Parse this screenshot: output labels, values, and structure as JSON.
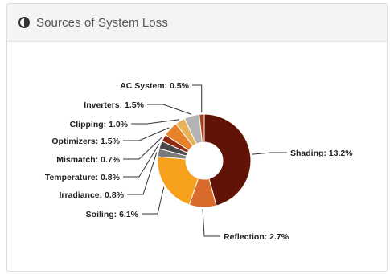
{
  "panel": {
    "title": "Sources of System Loss",
    "icon": "half-circle-contrast-icon"
  },
  "chart_data": {
    "type": "pie",
    "donut": true,
    "title": "",
    "slices": [
      {
        "label": "Shading",
        "value": 13.2,
        "unit": "%",
        "color": "#611405"
      },
      {
        "label": "Reflection",
        "value": 2.7,
        "unit": "%",
        "color": "#d86a2c"
      },
      {
        "label": "Soiling",
        "value": 6.1,
        "unit": "%",
        "color": "#f7a01c"
      },
      {
        "label": "Irradiance",
        "value": 0.8,
        "unit": "%",
        "color": "#7a7a7a"
      },
      {
        "label": "Temperature",
        "value": 0.8,
        "unit": "%",
        "color": "#4a4a4a"
      },
      {
        "label": "Mismatch",
        "value": 0.7,
        "unit": "%",
        "color": "#8f2a12"
      },
      {
        "label": "Optimizers",
        "value": 1.5,
        "unit": "%",
        "color": "#e8822a"
      },
      {
        "label": "Clipping",
        "value": 1.0,
        "unit": "%",
        "color": "#e6b25a"
      },
      {
        "label": "Inverters",
        "value": 1.5,
        "unit": "%",
        "color": "#b3b3b3"
      },
      {
        "label": "AC System",
        "value": 0.5,
        "unit": "%",
        "color": "#a8401a"
      }
    ]
  }
}
